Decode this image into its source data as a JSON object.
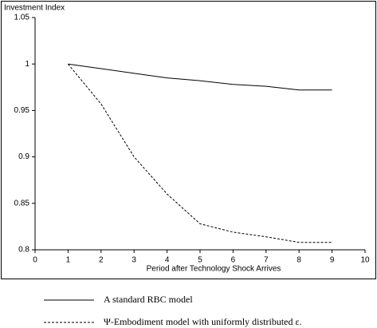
{
  "chart_data": {
    "type": "line",
    "title": "Investment Index",
    "xlabel": "Period after Technology Shock Arrives",
    "x": [
      1,
      2,
      3,
      4,
      5,
      6,
      7,
      8,
      9
    ],
    "series": [
      {
        "name": "A standard RBC model",
        "color": "#000000",
        "line_style": "solid",
        "values": [
          1,
          0.995,
          0.99,
          0.985,
          0.982,
          0.978,
          0.976,
          0.972,
          0.972
        ]
      },
      {
        "name": "Ψ-Embodiment model with uniformly distributed ε.",
        "color": "#000000",
        "line_style": "dashed",
        "values": [
          1,
          0.957,
          0.9,
          0.86,
          0.828,
          0.819,
          0.814,
          0.808,
          0.808
        ]
      }
    ],
    "xlim": [
      0,
      10
    ],
    "xticks": [
      0,
      1,
      2,
      3,
      4,
      5,
      6,
      7,
      8,
      9,
      10
    ],
    "ylim": [
      0.8,
      1.05
    ],
    "yticks": [
      0.8,
      0.85,
      0.9,
      0.95,
      1,
      1.05
    ],
    "grid": false,
    "legend": "bottom"
  }
}
